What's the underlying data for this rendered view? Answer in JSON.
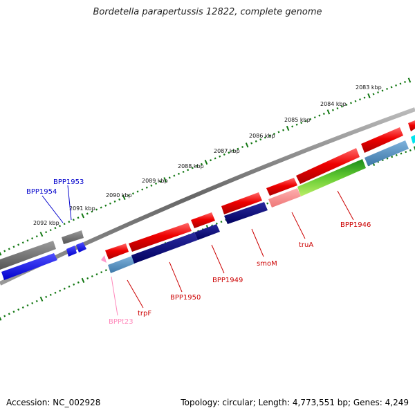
{
  "title": "Bordetella parapertussis 12822, complete genome",
  "ticks": [
    "2083 kbp",
    "2084 kbp",
    "2085 kbp",
    "2086 kbp",
    "2087 kbp",
    "2088 kbp",
    "2089 kbp",
    "2090 kbp",
    "2091 kbp",
    "2092 kbp"
  ],
  "genes": {
    "bpp1954": "BPP1954",
    "bpp1953": "BPP1953",
    "bpp1946": "BPP1946",
    "trua": "truA",
    "smom": "smoM",
    "bpp1949": "BPP1949",
    "bpp1950": "BPP1950",
    "trpf": "trpF",
    "bppt23": "BPPt23"
  },
  "footer": {
    "accession": "Accession: NC_002928",
    "stats": "Topology: circular; Length: 4,773,551 bp; Genes: 4,249"
  },
  "colors": {
    "cds_forward": "#ee1111",
    "cds_reverse": "#000080",
    "pseudo": "#777777",
    "rna": "#ff88bb",
    "gc_tick": "#117711"
  }
}
